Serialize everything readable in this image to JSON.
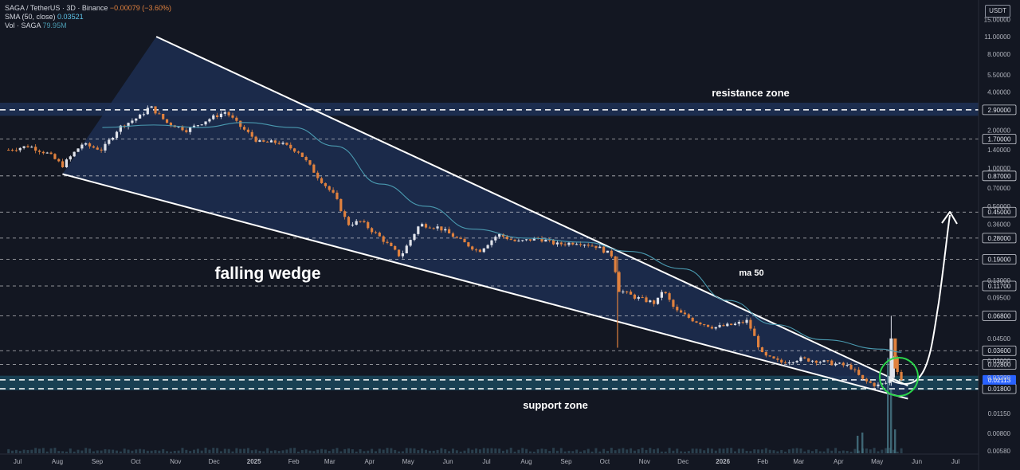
{
  "legend": {
    "symbol": "SAGA / TetherUS · 3D · Binance",
    "change": "−0.00079 (−3.60%)",
    "sma_label": "SMA (50, close)",
    "sma_value": "0.03521",
    "vol_label": "Vol · SAGA",
    "vol_value": "79.95M"
  },
  "currency_button": "USDT",
  "chart_data": {
    "type": "candlestick",
    "title": "SAGA / TetherUS · 3D · Binance",
    "y_scale": "log",
    "y_ticks": [
      "15.00000",
      "11.00000",
      "8.00000",
      "5.50000",
      "4.00000",
      "2.00000",
      "1.40000",
      "1.00000",
      "0.70000",
      "0.50000",
      "0.36000",
      "0.13000",
      "0.09500",
      "0.04500",
      "0.03000",
      "0.02200",
      "0.01150",
      "0.00800",
      "0.00580"
    ],
    "y_tick_values": [
      15,
      11,
      8,
      5.5,
      4,
      2,
      1.4,
      1,
      0.7,
      0.5,
      0.36,
      0.13,
      0.095,
      0.045,
      0.03,
      0.022,
      0.0115,
      0.008,
      0.0058
    ],
    "price_levels": [
      "2.90000",
      "1.70000",
      "0.87000",
      "0.45000",
      "0.28000",
      "0.19000",
      "0.11700",
      "0.06800",
      "0.03600",
      "0.02800",
      "0.01800"
    ],
    "price_level_values": [
      2.9,
      1.7,
      0.87,
      0.45,
      0.28,
      0.19,
      0.117,
      0.068,
      0.036,
      0.028,
      0.018
    ],
    "current_price": "0.02113",
    "current_price_value": 0.02113,
    "x_ticks": [
      "Jul",
      "Aug",
      "Sep",
      "Oct",
      "Nov",
      "Dec",
      "2025",
      "Feb",
      "Mar",
      "Apr",
      "May",
      "Jun",
      "Jul",
      "Aug",
      "Sep",
      "Oct",
      "Nov",
      "Dec",
      "2026",
      "Feb",
      "Mar",
      "Apr",
      "May",
      "Jun",
      "Jul"
    ],
    "x_tick_dates": [
      "2024-07",
      "2024-08",
      "2024-09",
      "2024-10",
      "2024-11",
      "2024-12",
      "2025-01",
      "2025-02",
      "2025-03",
      "2025-04",
      "2025-05",
      "2025-06",
      "2025-07",
      "2025-08",
      "2025-09",
      "2025-10",
      "2025-11",
      "2025-12",
      "2026-01",
      "2026-02",
      "2026-03",
      "2026-04",
      "2026-05",
      "2026-06",
      "2026-07"
    ],
    "price_path": [
      [
        "2024-06-24",
        1.4
      ],
      [
        "2024-07-10",
        1.5
      ],
      [
        "2024-07-25",
        1.3
      ],
      [
        "2024-08-05",
        1.05
      ],
      [
        "2024-08-20",
        1.55
      ],
      [
        "2024-09-05",
        1.4
      ],
      [
        "2024-09-18",
        2.1
      ],
      [
        "2024-10-05",
        2.6
      ],
      [
        "2024-10-12",
        3.1
      ],
      [
        "2024-10-25",
        2.3
      ],
      [
        "2024-11-10",
        2.0
      ],
      [
        "2024-11-25",
        2.4
      ],
      [
        "2024-12-10",
        2.8
      ],
      [
        "2024-12-20",
        2.2
      ],
      [
        "2025-01-05",
        1.6
      ],
      [
        "2025-01-20",
        1.6
      ],
      [
        "2025-02-05",
        1.35
      ],
      [
        "2025-02-20",
        0.85
      ],
      [
        "2025-03-05",
        0.6
      ],
      [
        "2025-03-15",
        0.36
      ],
      [
        "2025-03-25",
        0.38
      ],
      [
        "2025-04-10",
        0.28
      ],
      [
        "2025-04-25",
        0.2
      ],
      [
        "2025-05-10",
        0.36
      ],
      [
        "2025-05-25",
        0.34
      ],
      [
        "2025-06-10",
        0.27
      ],
      [
        "2025-06-25",
        0.22
      ],
      [
        "2025-07-10",
        0.3
      ],
      [
        "2025-07-25",
        0.26
      ],
      [
        "2025-08-10",
        0.28
      ],
      [
        "2025-08-25",
        0.25
      ],
      [
        "2025-09-10",
        0.26
      ],
      [
        "2025-09-25",
        0.24
      ],
      [
        "2025-10-08",
        0.2
      ],
      [
        "2025-10-11",
        0.11
      ],
      [
        "2025-10-25",
        0.095
      ],
      [
        "2025-11-10",
        0.085
      ],
      [
        "2025-11-15",
        0.11
      ],
      [
        "2025-11-25",
        0.075
      ],
      [
        "2025-12-10",
        0.062
      ],
      [
        "2025-12-25",
        0.055
      ],
      [
        "2026-01-10",
        0.058
      ],
      [
        "2026-01-20",
        0.062
      ],
      [
        "2026-02-01",
        0.033
      ],
      [
        "2026-02-15",
        0.029
      ],
      [
        "2026-03-01",
        0.031
      ],
      [
        "2026-03-15",
        0.03
      ],
      [
        "2026-04-01",
        0.028
      ],
      [
        "2026-04-10",
        0.027
      ],
      [
        "2026-04-20",
        0.021
      ],
      [
        "2026-05-01",
        0.019
      ],
      [
        "2026-05-08",
        0.02
      ],
      [
        "2026-05-11",
        0.022
      ],
      [
        "2026-05-12",
        0.04
      ],
      [
        "2026-05-15",
        0.028
      ],
      [
        "2026-05-20",
        0.02113
      ]
    ],
    "sma_path": [
      [
        "2024-09-05",
        2.1
      ],
      [
        "2024-10-15",
        2.2
      ],
      [
        "2024-11-20",
        2.1
      ],
      [
        "2024-12-25",
        2.3
      ],
      [
        "2025-02-01",
        2.1
      ],
      [
        "2025-03-05",
        1.5
      ],
      [
        "2025-04-10",
        0.75
      ],
      [
        "2025-05-15",
        0.5
      ],
      [
        "2025-06-20",
        0.33
      ],
      [
        "2025-08-01",
        0.28
      ],
      [
        "2025-09-15",
        0.26
      ],
      [
        "2025-10-20",
        0.22
      ],
      [
        "2025-12-01",
        0.16
      ],
      [
        "2026-01-05",
        0.09
      ],
      [
        "2026-02-10",
        0.058
      ],
      [
        "2026-03-20",
        0.044
      ],
      [
        "2026-05-05",
        0.037
      ],
      [
        "2026-05-20",
        0.035
      ]
    ],
    "wedge_upper": [
      [
        "2024-10-17",
        11.0
      ],
      [
        "2026-05-25",
        0.019
      ]
    ],
    "wedge_lower": [
      [
        "2024-08-05",
        0.9
      ],
      [
        "2026-05-25",
        0.015
      ]
    ],
    "resistance_zone": [
      2.6,
      3.3
    ],
    "support_zone": [
      0.0175,
      0.0228
    ],
    "annotations": [
      "resistance zone",
      "falling wedge",
      "ma 50",
      "support zone"
    ],
    "colors": {
      "background": "#131722",
      "up": "#e0e3eb",
      "down": "#e0813e",
      "wedge_fill": "#1e2f55",
      "zone": "#1f3156",
      "support_zone": "#1b4559",
      "sma": "#4a9ab0",
      "wedge_line": "#ffffff",
      "circle": "#2bd64b"
    }
  }
}
